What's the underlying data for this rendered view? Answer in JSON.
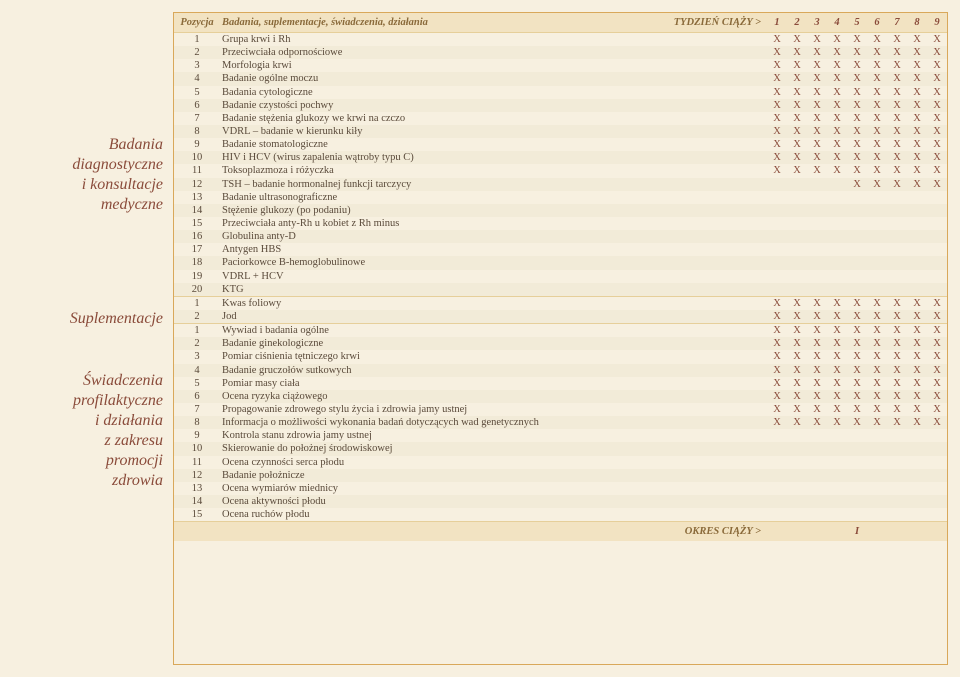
{
  "colors": {
    "bg": "#f7f0e0",
    "border": "#d9a85a",
    "headerBg": "#f2e3c2",
    "stripe": "#f2ebd8",
    "text": "#5a4a3a",
    "accent": "#8a4b3a",
    "headerText": "#8a6a3a"
  },
  "fontSizes": {
    "body": 10.5,
    "sidebar": 16
  },
  "sideLabels": [
    "Badania\ndiagnostyczne\ni konsultacje\nmedyczne",
    "Suplementacje",
    "Świadczenia\nprofilaktyczne\ni działania\nz zakresu\npromocji\nzdrowia"
  ],
  "header": {
    "poz": "Pozycja",
    "name": "Badania, suplementacje, świadczenia, działania",
    "weeksLabel": "TYDZIEŃ CIĄŻY >",
    "weeks": [
      "1",
      "2",
      "3",
      "4",
      "5",
      "6",
      "7",
      "8",
      "9"
    ]
  },
  "okres": {
    "label": "OKRES CIĄŻY >",
    "mark": "I"
  },
  "sections": [
    {
      "rows": [
        {
          "n": "1",
          "t": "Grupa krwi i Rh",
          "m": [
            1,
            1,
            1,
            1,
            1,
            1,
            1,
            1,
            1
          ]
        },
        {
          "n": "2",
          "t": "Przeciwciała odpornościowe",
          "m": [
            1,
            1,
            1,
            1,
            1,
            1,
            1,
            1,
            1
          ]
        },
        {
          "n": "3",
          "t": "Morfologia krwi",
          "m": [
            1,
            1,
            1,
            1,
            1,
            1,
            1,
            1,
            1
          ]
        },
        {
          "n": "4",
          "t": "Badanie ogólne moczu",
          "m": [
            1,
            1,
            1,
            1,
            1,
            1,
            1,
            1,
            1
          ]
        },
        {
          "n": "5",
          "t": "Badania cytologiczne",
          "m": [
            1,
            1,
            1,
            1,
            1,
            1,
            1,
            1,
            1
          ]
        },
        {
          "n": "6",
          "t": "Badanie czystości pochwy",
          "m": [
            1,
            1,
            1,
            1,
            1,
            1,
            1,
            1,
            1
          ]
        },
        {
          "n": "7",
          "t": "Badanie stężenia glukozy we krwi na czczo",
          "m": [
            1,
            1,
            1,
            1,
            1,
            1,
            1,
            1,
            1
          ]
        },
        {
          "n": "8",
          "t": "VDRL – badanie w kierunku kiły",
          "m": [
            1,
            1,
            1,
            1,
            1,
            1,
            1,
            1,
            1
          ]
        },
        {
          "n": "9",
          "t": "Badanie stomatologiczne",
          "m": [
            1,
            1,
            1,
            1,
            1,
            1,
            1,
            1,
            1
          ]
        },
        {
          "n": "10",
          "t": "HIV i HCV (wirus zapalenia wątroby typu C)",
          "m": [
            1,
            1,
            1,
            1,
            1,
            1,
            1,
            1,
            1
          ]
        },
        {
          "n": "11",
          "t": "Toksoplazmoza i różyczka",
          "m": [
            1,
            1,
            1,
            1,
            1,
            1,
            1,
            1,
            1
          ]
        },
        {
          "n": "12",
          "t": "TSH – badanie hormonalnej funkcji tarczycy",
          "m": [
            0,
            0,
            0,
            0,
            1,
            1,
            1,
            1,
            1
          ]
        },
        {
          "n": "13",
          "t": "Badanie ultrasonograficzne",
          "m": [
            0,
            0,
            0,
            0,
            0,
            0,
            0,
            0,
            0
          ]
        },
        {
          "n": "14",
          "t": "Stężenie glukozy (po podaniu)",
          "m": [
            0,
            0,
            0,
            0,
            0,
            0,
            0,
            0,
            0
          ]
        },
        {
          "n": "15",
          "t": "Przeciwciała anty-Rh u kobiet z Rh minus",
          "m": [
            0,
            0,
            0,
            0,
            0,
            0,
            0,
            0,
            0
          ]
        },
        {
          "n": "16",
          "t": "Globulina anty-D",
          "m": [
            0,
            0,
            0,
            0,
            0,
            0,
            0,
            0,
            0
          ]
        },
        {
          "n": "17",
          "t": "Antygen HBS",
          "m": [
            0,
            0,
            0,
            0,
            0,
            0,
            0,
            0,
            0
          ]
        },
        {
          "n": "18",
          "t": "Paciorkowce B-hemoglobulinowe",
          "m": [
            0,
            0,
            0,
            0,
            0,
            0,
            0,
            0,
            0
          ]
        },
        {
          "n": "19",
          "t": "VDRL + HCV",
          "m": [
            0,
            0,
            0,
            0,
            0,
            0,
            0,
            0,
            0
          ]
        },
        {
          "n": "20",
          "t": "KTG",
          "m": [
            0,
            0,
            0,
            0,
            0,
            0,
            0,
            0,
            0
          ]
        }
      ]
    },
    {
      "rows": [
        {
          "n": "1",
          "t": "Kwas foliowy",
          "m": [
            1,
            1,
            1,
            1,
            1,
            1,
            1,
            1,
            1
          ]
        },
        {
          "n": "2",
          "t": "Jod",
          "m": [
            1,
            1,
            1,
            1,
            1,
            1,
            1,
            1,
            1
          ]
        }
      ]
    },
    {
      "rows": [
        {
          "n": "1",
          "t": "Wywiad i badania ogólne",
          "m": [
            1,
            1,
            1,
            1,
            1,
            1,
            1,
            1,
            1
          ]
        },
        {
          "n": "2",
          "t": "Badanie ginekologiczne",
          "m": [
            1,
            1,
            1,
            1,
            1,
            1,
            1,
            1,
            1
          ]
        },
        {
          "n": "3",
          "t": "Pomiar ciśnienia tętniczego krwi",
          "m": [
            1,
            1,
            1,
            1,
            1,
            1,
            1,
            1,
            1
          ]
        },
        {
          "n": "4",
          "t": "Badanie gruczołów sutkowych",
          "m": [
            1,
            1,
            1,
            1,
            1,
            1,
            1,
            1,
            1
          ]
        },
        {
          "n": "5",
          "t": "Pomiar masy ciała",
          "m": [
            1,
            1,
            1,
            1,
            1,
            1,
            1,
            1,
            1
          ]
        },
        {
          "n": "6",
          "t": "Ocena ryzyka ciążowego",
          "m": [
            1,
            1,
            1,
            1,
            1,
            1,
            1,
            1,
            1
          ]
        },
        {
          "n": "7",
          "t": "Propagowanie zdrowego stylu życia i zdrowia jamy ustnej",
          "m": [
            1,
            1,
            1,
            1,
            1,
            1,
            1,
            1,
            1
          ]
        },
        {
          "n": "8",
          "t": "Informacja o możliwości wykonania badań dotyczących wad genetycznych",
          "m": [
            1,
            1,
            1,
            1,
            1,
            1,
            1,
            1,
            1
          ]
        },
        {
          "n": "9",
          "t": "Kontrola stanu zdrowia jamy ustnej",
          "m": [
            0,
            0,
            0,
            0,
            0,
            0,
            0,
            0,
            0
          ]
        },
        {
          "n": "10",
          "t": "Skierowanie do położnej środowiskowej",
          "m": [
            0,
            0,
            0,
            0,
            0,
            0,
            0,
            0,
            0
          ]
        },
        {
          "n": "11",
          "t": "Ocena czynności serca płodu",
          "m": [
            0,
            0,
            0,
            0,
            0,
            0,
            0,
            0,
            0
          ]
        },
        {
          "n": "12",
          "t": "Badanie położnicze",
          "m": [
            0,
            0,
            0,
            0,
            0,
            0,
            0,
            0,
            0
          ]
        },
        {
          "n": "13",
          "t": "Ocena wymiarów miednicy",
          "m": [
            0,
            0,
            0,
            0,
            0,
            0,
            0,
            0,
            0
          ]
        },
        {
          "n": "14",
          "t": "Ocena aktywności płodu",
          "m": [
            0,
            0,
            0,
            0,
            0,
            0,
            0,
            0,
            0
          ]
        },
        {
          "n": "15",
          "t": "Ocena ruchów płodu",
          "m": [
            0,
            0,
            0,
            0,
            0,
            0,
            0,
            0,
            0
          ]
        }
      ]
    }
  ]
}
